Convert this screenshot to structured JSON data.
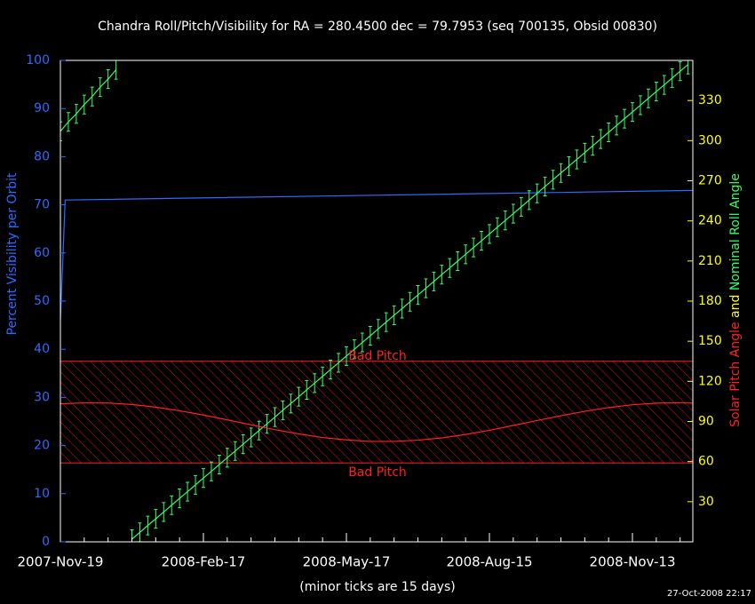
{
  "chart_data": {
    "type": "line",
    "title": "Chandra Roll/Pitch/Visibility for RA = 280.4500 dec = 79.7953 (seq 700135, Obsid 00830)",
    "xlabel": "(minor ticks are 15 days)",
    "footer": "27-Oct-2008 22:17",
    "xlim": [
      0,
      398
    ],
    "xticks": [
      {
        "value": 0,
        "label": "2007-Nov-19"
      },
      {
        "value": 90,
        "label": "2008-Feb-17"
      },
      {
        "value": 180,
        "label": "2008-May-17"
      },
      {
        "value": 270,
        "label": "2008-Aug-15"
      },
      {
        "value": 360,
        "label": "2008-Nov-13"
      }
    ],
    "xminor_ticks": [
      15,
      30,
      45,
      60,
      75,
      105,
      120,
      135,
      150,
      165,
      195,
      210,
      225,
      240,
      255,
      285,
      300,
      315,
      330,
      345,
      375,
      390
    ],
    "ylim": [
      0,
      100
    ],
    "yticks": [
      0,
      10,
      20,
      30,
      40,
      50,
      60,
      70,
      80,
      90,
      100
    ],
    "y2lim": [
      0,
      360
    ],
    "y2ticks": [
      30,
      60,
      90,
      120,
      150,
      180,
      210,
      240,
      270,
      300,
      330
    ],
    "y2label_joiner": "and",
    "bad_pitch": {
      "range": [
        59,
        135
      ],
      "labels": [
        "Bad Pitch",
        "Bad Pitch"
      ],
      "color": "#ff2020"
    },
    "series": [
      {
        "name": "Percent Visibility per Orbit",
        "color": "#2a6cff",
        "x": [
          0,
          3,
          398
        ],
        "values": [
          46,
          71,
          73
        ]
      },
      {
        "name": "Nominal Roll Angle",
        "color": "#33ff66",
        "axis": "y2",
        "error": 7,
        "x": [
          0,
          5,
          10,
          15,
          20,
          25,
          30,
          35,
          40,
          45,
          50,
          55,
          60,
          65,
          70,
          75,
          80,
          85,
          90,
          95,
          100,
          105,
          110,
          115,
          120,
          125,
          130,
          135,
          140,
          145,
          150,
          155,
          160,
          165,
          170,
          175,
          180,
          185,
          190,
          195,
          200,
          205,
          210,
          215,
          220,
          225,
          230,
          235,
          240,
          245,
          250,
          255,
          260,
          265,
          270,
          275,
          280,
          285,
          290,
          295,
          300,
          305,
          310,
          315,
          320,
          325,
          330,
          335,
          340,
          345,
          350,
          355,
          360,
          365,
          370,
          375,
          380,
          385,
          390,
          395
        ],
        "values": [
          307,
          314,
          320,
          327,
          333,
          340,
          346,
          353,
          null,
          2.0,
          7.1,
          12.2,
          17.2,
          22.3,
          27.4,
          32.5,
          37.5,
          42.6,
          47.7,
          52.7,
          57.8,
          62.9,
          67.9,
          73.0,
          78.1,
          83.2,
          88.2,
          93.3,
          98.4,
          103.4,
          108.5,
          113.6,
          118.7,
          123.7,
          128.8,
          133.9,
          138.9,
          144.0,
          149.1,
          154.1,
          159.2,
          164.3,
          169.4,
          174.4,
          179.5,
          184.6,
          189.6,
          194.7,
          199.8,
          204.8,
          209.9,
          215.0,
          220.1,
          225.1,
          230.2,
          235.3,
          240.3,
          245.4,
          250.5,
          255.5,
          260.6,
          265.7,
          270.8,
          275.8,
          280.9,
          286.0,
          291.0,
          296.1,
          301.2,
          306.2,
          311.3,
          316.4,
          321.4,
          326.5,
          331.6,
          336.7,
          341.7,
          346.8,
          351.9,
          356.9
        ]
      },
      {
        "name": "Solar Pitch Angle",
        "color": "#ff2020",
        "axis": "y2",
        "x": [
          0,
          15,
          30,
          45,
          60,
          75,
          90,
          105,
          120,
          135,
          150,
          165,
          180,
          195,
          210,
          225,
          240,
          255,
          270,
          285,
          300,
          315,
          330,
          345,
          360,
          375,
          390,
          398
        ],
        "values": [
          103.2,
          103.9,
          103.8,
          102.7,
          100.7,
          98.0,
          94.8,
          91.2,
          87.5,
          83.9,
          80.7,
          78.0,
          76.2,
          75.1,
          75.1,
          76.0,
          77.7,
          80.3,
          83.4,
          87.0,
          90.7,
          94.3,
          97.6,
          100.4,
          102.5,
          103.7,
          104.0,
          103.7
        ]
      }
    ],
    "left_tick_color": "#2a6cff",
    "right_tick_color": "#ffff00",
    "background": "#000000"
  }
}
